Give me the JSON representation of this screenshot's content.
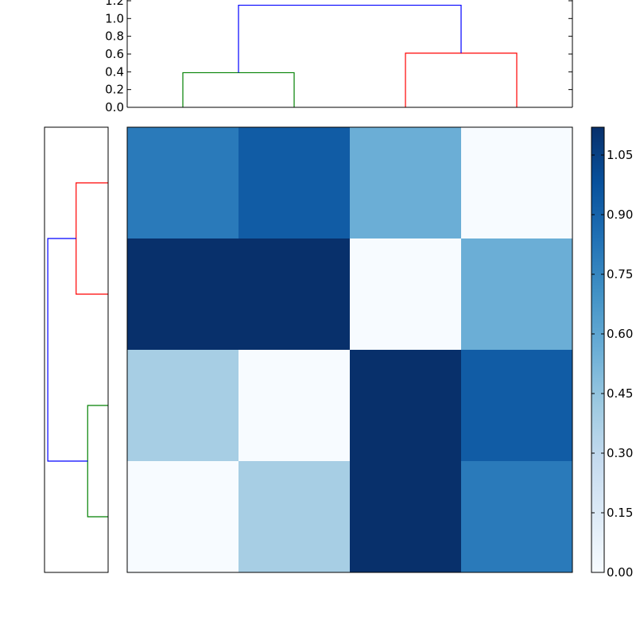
{
  "chart_data": [
    {
      "type": "dendrogram",
      "orientation": "top",
      "ylim": [
        0,
        1.2
      ],
      "yticks": [
        "0.0",
        "0.2",
        "0.4",
        "0.6",
        "0.8",
        "1.0",
        "1.2"
      ],
      "leaf_count": 4,
      "links": [
        {
          "left": 0,
          "right": 1,
          "height": 0.39,
          "color": "#008000"
        },
        {
          "left": 2,
          "right": 3,
          "height": 0.61,
          "color": "#ff0000"
        },
        {
          "left": 0.5,
          "right": 2.5,
          "height": 1.15,
          "color": "#0000ff"
        }
      ]
    },
    {
      "type": "dendrogram",
      "orientation": "left",
      "leaf_count": 4,
      "links": [
        {
          "left": 0,
          "right": 1,
          "height": 0.39,
          "color": "#008000"
        },
        {
          "left": 2,
          "right": 3,
          "height": 0.61,
          "color": "#ff0000"
        },
        {
          "left": 0.5,
          "right": 2.5,
          "height": 1.15,
          "color": "#0000ff"
        }
      ]
    },
    {
      "type": "heatmap",
      "colormap": "Blues",
      "vmin": 0.0,
      "vmax": 1.12,
      "rows_top_to_bottom": [
        [
          0.8,
          0.93,
          0.56,
          0.0
        ],
        [
          1.12,
          1.12,
          0.0,
          0.56
        ],
        [
          0.39,
          0.0,
          1.12,
          0.93
        ],
        [
          0.0,
          0.39,
          1.12,
          0.8
        ]
      ]
    },
    {
      "type": "colorbar",
      "vmin": 0.0,
      "vmax": 1.12,
      "ticks": [
        0,
        0.15,
        0.3,
        0.45,
        0.6,
        0.75,
        0.9,
        1.05
      ],
      "tick_labels": [
        "0.00",
        "0.15",
        "0.30",
        "0.45",
        "0.60",
        "0.75",
        "0.90",
        "1.05"
      ]
    }
  ]
}
